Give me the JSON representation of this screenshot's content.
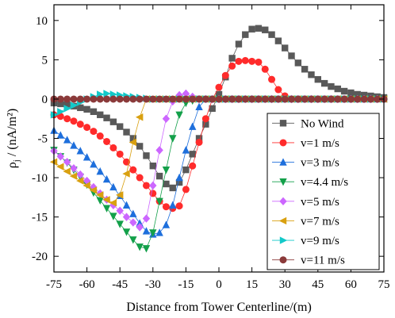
{
  "chart_data": {
    "type": "scatter",
    "title": "",
    "xlabel": "Distance from Tower Centerline/(m)",
    "ylabel_main": "ρ",
    "ylabel_sub": "j",
    "ylabel_rest": " / (nA/m²)",
    "xlim": [
      -75,
      75
    ],
    "ylim": [
      -22,
      12
    ],
    "x_ticks": [
      -75,
      -60,
      -45,
      -30,
      -15,
      0,
      15,
      30,
      45,
      60,
      75
    ],
    "y_ticks": [
      -20,
      -15,
      -10,
      -5,
      0,
      5,
      10
    ],
    "grid": false,
    "legend_position": "bottom-right",
    "series": [
      {
        "name": "No Wind",
        "marker": "square",
        "color": "#595959",
        "x": [
          -75,
          -72,
          -69,
          -66,
          -63,
          -60,
          -57,
          -54,
          -51,
          -48,
          -45,
          -42,
          -39,
          -36,
          -33,
          -30,
          -27,
          -24,
          -21,
          -18,
          -15,
          -12,
          -9,
          -6,
          -3,
          0,
          3,
          6,
          9,
          12,
          15,
          18,
          21,
          24,
          27,
          30,
          33,
          36,
          39,
          42,
          45,
          48,
          51,
          54,
          57,
          60,
          63,
          66,
          69,
          72,
          75
        ],
        "y": [
          -0.5,
          -0.6,
          -0.7,
          -0.9,
          -1.1,
          -1.3,
          -1.6,
          -2.0,
          -2.4,
          -2.9,
          -3.5,
          -4.2,
          -5.0,
          -6.0,
          -7.2,
          -8.5,
          -9.8,
          -10.8,
          -11.3,
          -10.6,
          -9.0,
          -7.0,
          -5.0,
          -3.2,
          -1.2,
          0.6,
          2.8,
          5.2,
          7.0,
          8.2,
          8.9,
          9.0,
          8.8,
          8.2,
          7.4,
          6.5,
          5.5,
          4.6,
          3.8,
          3.1,
          2.5,
          2.0,
          1.6,
          1.3,
          1.0,
          0.8,
          0.6,
          0.5,
          0.4,
          0.3,
          0.2
        ]
      },
      {
        "name": "v=1 m/s",
        "marker": "circle",
        "color": "#ff2b2b",
        "x": [
          -75,
          -72,
          -69,
          -66,
          -63,
          -60,
          -57,
          -54,
          -51,
          -48,
          -45,
          -42,
          -39,
          -36,
          -33,
          -30,
          -27,
          -24,
          -21,
          -18,
          -15,
          -12,
          -9,
          -6,
          -3,
          0,
          3,
          6,
          9,
          12,
          15,
          18,
          21,
          24,
          27,
          30,
          33,
          36,
          39,
          42,
          45,
          48,
          51,
          54,
          57,
          60,
          63,
          66,
          69,
          72,
          75
        ],
        "y": [
          -2.0,
          -2.2,
          -2.5,
          -2.8,
          -3.2,
          -3.6,
          -4.1,
          -4.7,
          -5.4,
          -6.2,
          -7.0,
          -8.0,
          -9.0,
          -10.0,
          -11.0,
          -12.0,
          -13.0,
          -13.7,
          -13.9,
          -13.6,
          -11.5,
          -8.5,
          -5.5,
          -2.5,
          0.0,
          1.5,
          3.0,
          4.2,
          4.8,
          4.9,
          4.8,
          4.7,
          3.8,
          2.5,
          1.2,
          0.4,
          0.0,
          0.0,
          0.0,
          0.0,
          0.0,
          0.0,
          0.0,
          0.0,
          0.0,
          0.0,
          0.0,
          0.0,
          0.0,
          0.0,
          0.0
        ]
      },
      {
        "name": "v=3 m/s",
        "marker": "triangle-up",
        "color": "#1e6fdc",
        "x": [
          -75,
          -72,
          -69,
          -66,
          -63,
          -60,
          -57,
          -54,
          -51,
          -48,
          -45,
          -42,
          -39,
          -36,
          -33,
          -30,
          -27,
          -24,
          -21,
          -18,
          -15,
          -12,
          -9,
          -6,
          -3,
          0,
          3,
          6,
          9,
          12,
          15,
          18,
          21,
          24,
          27,
          30,
          33,
          36,
          39,
          42,
          45,
          48,
          51,
          54,
          57,
          60,
          63,
          66,
          69,
          72,
          75
        ],
        "y": [
          -4.0,
          -4.6,
          -5.2,
          -5.9,
          -6.6,
          -7.4,
          -8.3,
          -9.2,
          -10.2,
          -11.2,
          -12.3,
          -13.5,
          -14.6,
          -15.8,
          -16.8,
          -17.2,
          -17.0,
          -16.0,
          -13.5,
          -10.0,
          -6.5,
          -3.5,
          -1.0,
          0.0,
          0.0,
          0.0,
          0.0,
          0.0,
          0.0,
          0.0,
          0.0,
          0.0,
          0.0,
          0.0,
          0.0,
          0.0,
          0.0,
          0.0,
          0.0,
          0.0,
          0.0,
          0.0,
          0.0,
          0.0,
          0.0,
          0.0,
          0.0,
          0.0,
          0.0,
          0.0,
          0.0
        ]
      },
      {
        "name": "v=4.4 m/s",
        "marker": "triangle-down",
        "color": "#13a04a",
        "x": [
          -75,
          -72,
          -69,
          -66,
          -63,
          -60,
          -57,
          -54,
          -51,
          -48,
          -45,
          -42,
          -39,
          -36,
          -33,
          -30,
          -27,
          -24,
          -21,
          -18,
          -15,
          -12,
          -9,
          -6,
          -3,
          0,
          3,
          6,
          9,
          12,
          15,
          18,
          21,
          24,
          27,
          30,
          33,
          36,
          39,
          42,
          45,
          48,
          51,
          54,
          57,
          60,
          63,
          66,
          69,
          72,
          75
        ],
        "y": [
          -6.5,
          -7.3,
          -8.1,
          -9.0,
          -9.9,
          -10.9,
          -11.9,
          -12.9,
          -13.9,
          -14.9,
          -15.9,
          -16.9,
          -17.9,
          -18.8,
          -19.0,
          -17.0,
          -13.0,
          -9.0,
          -5.0,
          -2.0,
          -0.5,
          -0.2,
          0.0,
          0.0,
          0.0,
          0.0,
          0.0,
          0.0,
          0.0,
          0.0,
          0.0,
          0.0,
          0.0,
          0.0,
          0.0,
          0.0,
          0.0,
          0.0,
          0.0,
          0.0,
          0.0,
          0.0,
          0.0,
          0.0,
          0.0,
          0.0,
          0.0,
          0.0,
          0.0,
          0.0,
          0.0
        ]
      },
      {
        "name": "v=5 m/s",
        "marker": "diamond",
        "color": "#cc66ff",
        "x": [
          -75,
          -72,
          -69,
          -66,
          -63,
          -60,
          -57,
          -54,
          -51,
          -48,
          -45,
          -42,
          -39,
          -36,
          -33,
          -30,
          -27,
          -24,
          -21,
          -18,
          -15,
          -12,
          -9,
          -6,
          -3,
          0,
          3,
          6,
          9,
          12,
          15,
          18,
          21,
          24,
          27,
          30,
          33,
          36,
          39,
          42,
          45,
          48,
          51,
          54,
          57,
          60,
          63,
          66,
          69,
          72,
          75
        ],
        "y": [
          -6.6,
          -7.3,
          -8.0,
          -8.8,
          -9.6,
          -10.4,
          -11.2,
          -12.0,
          -12.8,
          -13.5,
          -14.2,
          -15.0,
          -15.7,
          -16.3,
          -15.2,
          -11.0,
          -6.5,
          -2.5,
          -0.3,
          0.5,
          0.7,
          0.3,
          0.0,
          0.0,
          0.0,
          0.0,
          0.0,
          0.0,
          0.0,
          0.0,
          0.0,
          0.0,
          0.0,
          0.0,
          0.0,
          0.0,
          0.0,
          0.0,
          0.0,
          0.0,
          0.0,
          0.0,
          0.0,
          0.0,
          0.0,
          0.0,
          0.0,
          0.0,
          0.0,
          0.0,
          0.0
        ]
      },
      {
        "name": "v=7 m/s",
        "marker": "triangle-left",
        "color": "#d9a010",
        "x": [
          -75,
          -72,
          -69,
          -66,
          -63,
          -60,
          -57,
          -54,
          -51,
          -48,
          -45,
          -42,
          -39,
          -36,
          -33,
          -30,
          -27,
          -24,
          -21,
          -18,
          -15,
          -12,
          -9,
          -6,
          -3,
          0,
          3,
          6,
          9,
          12,
          15,
          18,
          21,
          24,
          27,
          30,
          33,
          36,
          39,
          42,
          45,
          48,
          51,
          54,
          57,
          60,
          63,
          66,
          69,
          72,
          75
        ],
        "y": [
          -8.0,
          -8.6,
          -9.2,
          -9.8,
          -10.4,
          -11.0,
          -11.6,
          -12.2,
          -12.8,
          -13.2,
          -12.2,
          -9.5,
          -5.5,
          -2.3,
          0.0,
          0.0,
          0.0,
          0.0,
          0.0,
          0.0,
          0.0,
          0.0,
          0.0,
          0.0,
          0.0,
          0.0,
          0.0,
          0.0,
          0.0,
          0.0,
          0.0,
          0.0,
          0.0,
          0.0,
          0.0,
          0.0,
          0.0,
          0.0,
          0.0,
          0.0,
          0.0,
          0.0,
          0.0,
          0.0,
          0.0,
          0.0,
          0.0,
          0.0,
          0.0,
          0.0,
          0.0
        ]
      },
      {
        "name": "v=9 m/s",
        "marker": "triangle-right",
        "color": "#12c9c9",
        "x": [
          -75,
          -72,
          -69,
          -66,
          -63,
          -60,
          -57,
          -54,
          -51,
          -48,
          -45,
          -42,
          -39,
          -36,
          -33,
          -30,
          -27,
          -24,
          -21,
          -18,
          -15,
          -12,
          -9,
          -6,
          -3,
          0,
          3,
          6,
          9,
          12,
          15,
          18,
          21,
          24,
          27,
          30,
          33,
          36,
          39,
          42,
          45,
          48,
          51,
          54,
          57,
          60,
          63,
          66,
          69,
          72,
          75
        ],
        "y": [
          -2.0,
          -1.6,
          -1.2,
          -0.8,
          -0.4,
          0.0,
          0.3,
          0.6,
          0.7,
          0.6,
          0.5,
          0.4,
          0.3,
          0.2,
          0.1,
          0.0,
          0.0,
          0.0,
          0.0,
          0.0,
          0.0,
          0.0,
          0.0,
          0.0,
          0.0,
          0.0,
          0.0,
          0.0,
          0.0,
          0.0,
          0.0,
          0.0,
          0.0,
          0.0,
          0.0,
          0.0,
          0.0,
          0.0,
          0.0,
          0.0,
          0.0,
          0.0,
          0.0,
          0.0,
          0.0,
          0.0,
          0.0,
          0.0,
          0.0,
          0.0,
          0.0
        ]
      },
      {
        "name": "v=11 m/s",
        "marker": "circle",
        "color": "#8b3a3a",
        "x": [
          -75,
          -72,
          -69,
          -66,
          -63,
          -60,
          -57,
          -54,
          -51,
          -48,
          -45,
          -42,
          -39,
          -36,
          -33,
          -30,
          -27,
          -24,
          -21,
          -18,
          -15,
          -12,
          -9,
          -6,
          -3,
          0,
          3,
          6,
          9,
          12,
          15,
          18,
          21,
          24,
          27,
          30,
          33,
          36,
          39,
          42,
          45,
          48,
          51,
          54,
          57,
          60,
          63,
          66,
          69,
          72,
          75
        ],
        "y": [
          0,
          0,
          0,
          0,
          0,
          0,
          0,
          0,
          0,
          0,
          0,
          0,
          0,
          0,
          0,
          0,
          0,
          0,
          0,
          0,
          0,
          0,
          0,
          0,
          0,
          0,
          0,
          0,
          0,
          0,
          0,
          0,
          0,
          0,
          0,
          0,
          0,
          0,
          0,
          0,
          0,
          0,
          0,
          0,
          0,
          0,
          0,
          0,
          0,
          0,
          0
        ]
      }
    ]
  }
}
